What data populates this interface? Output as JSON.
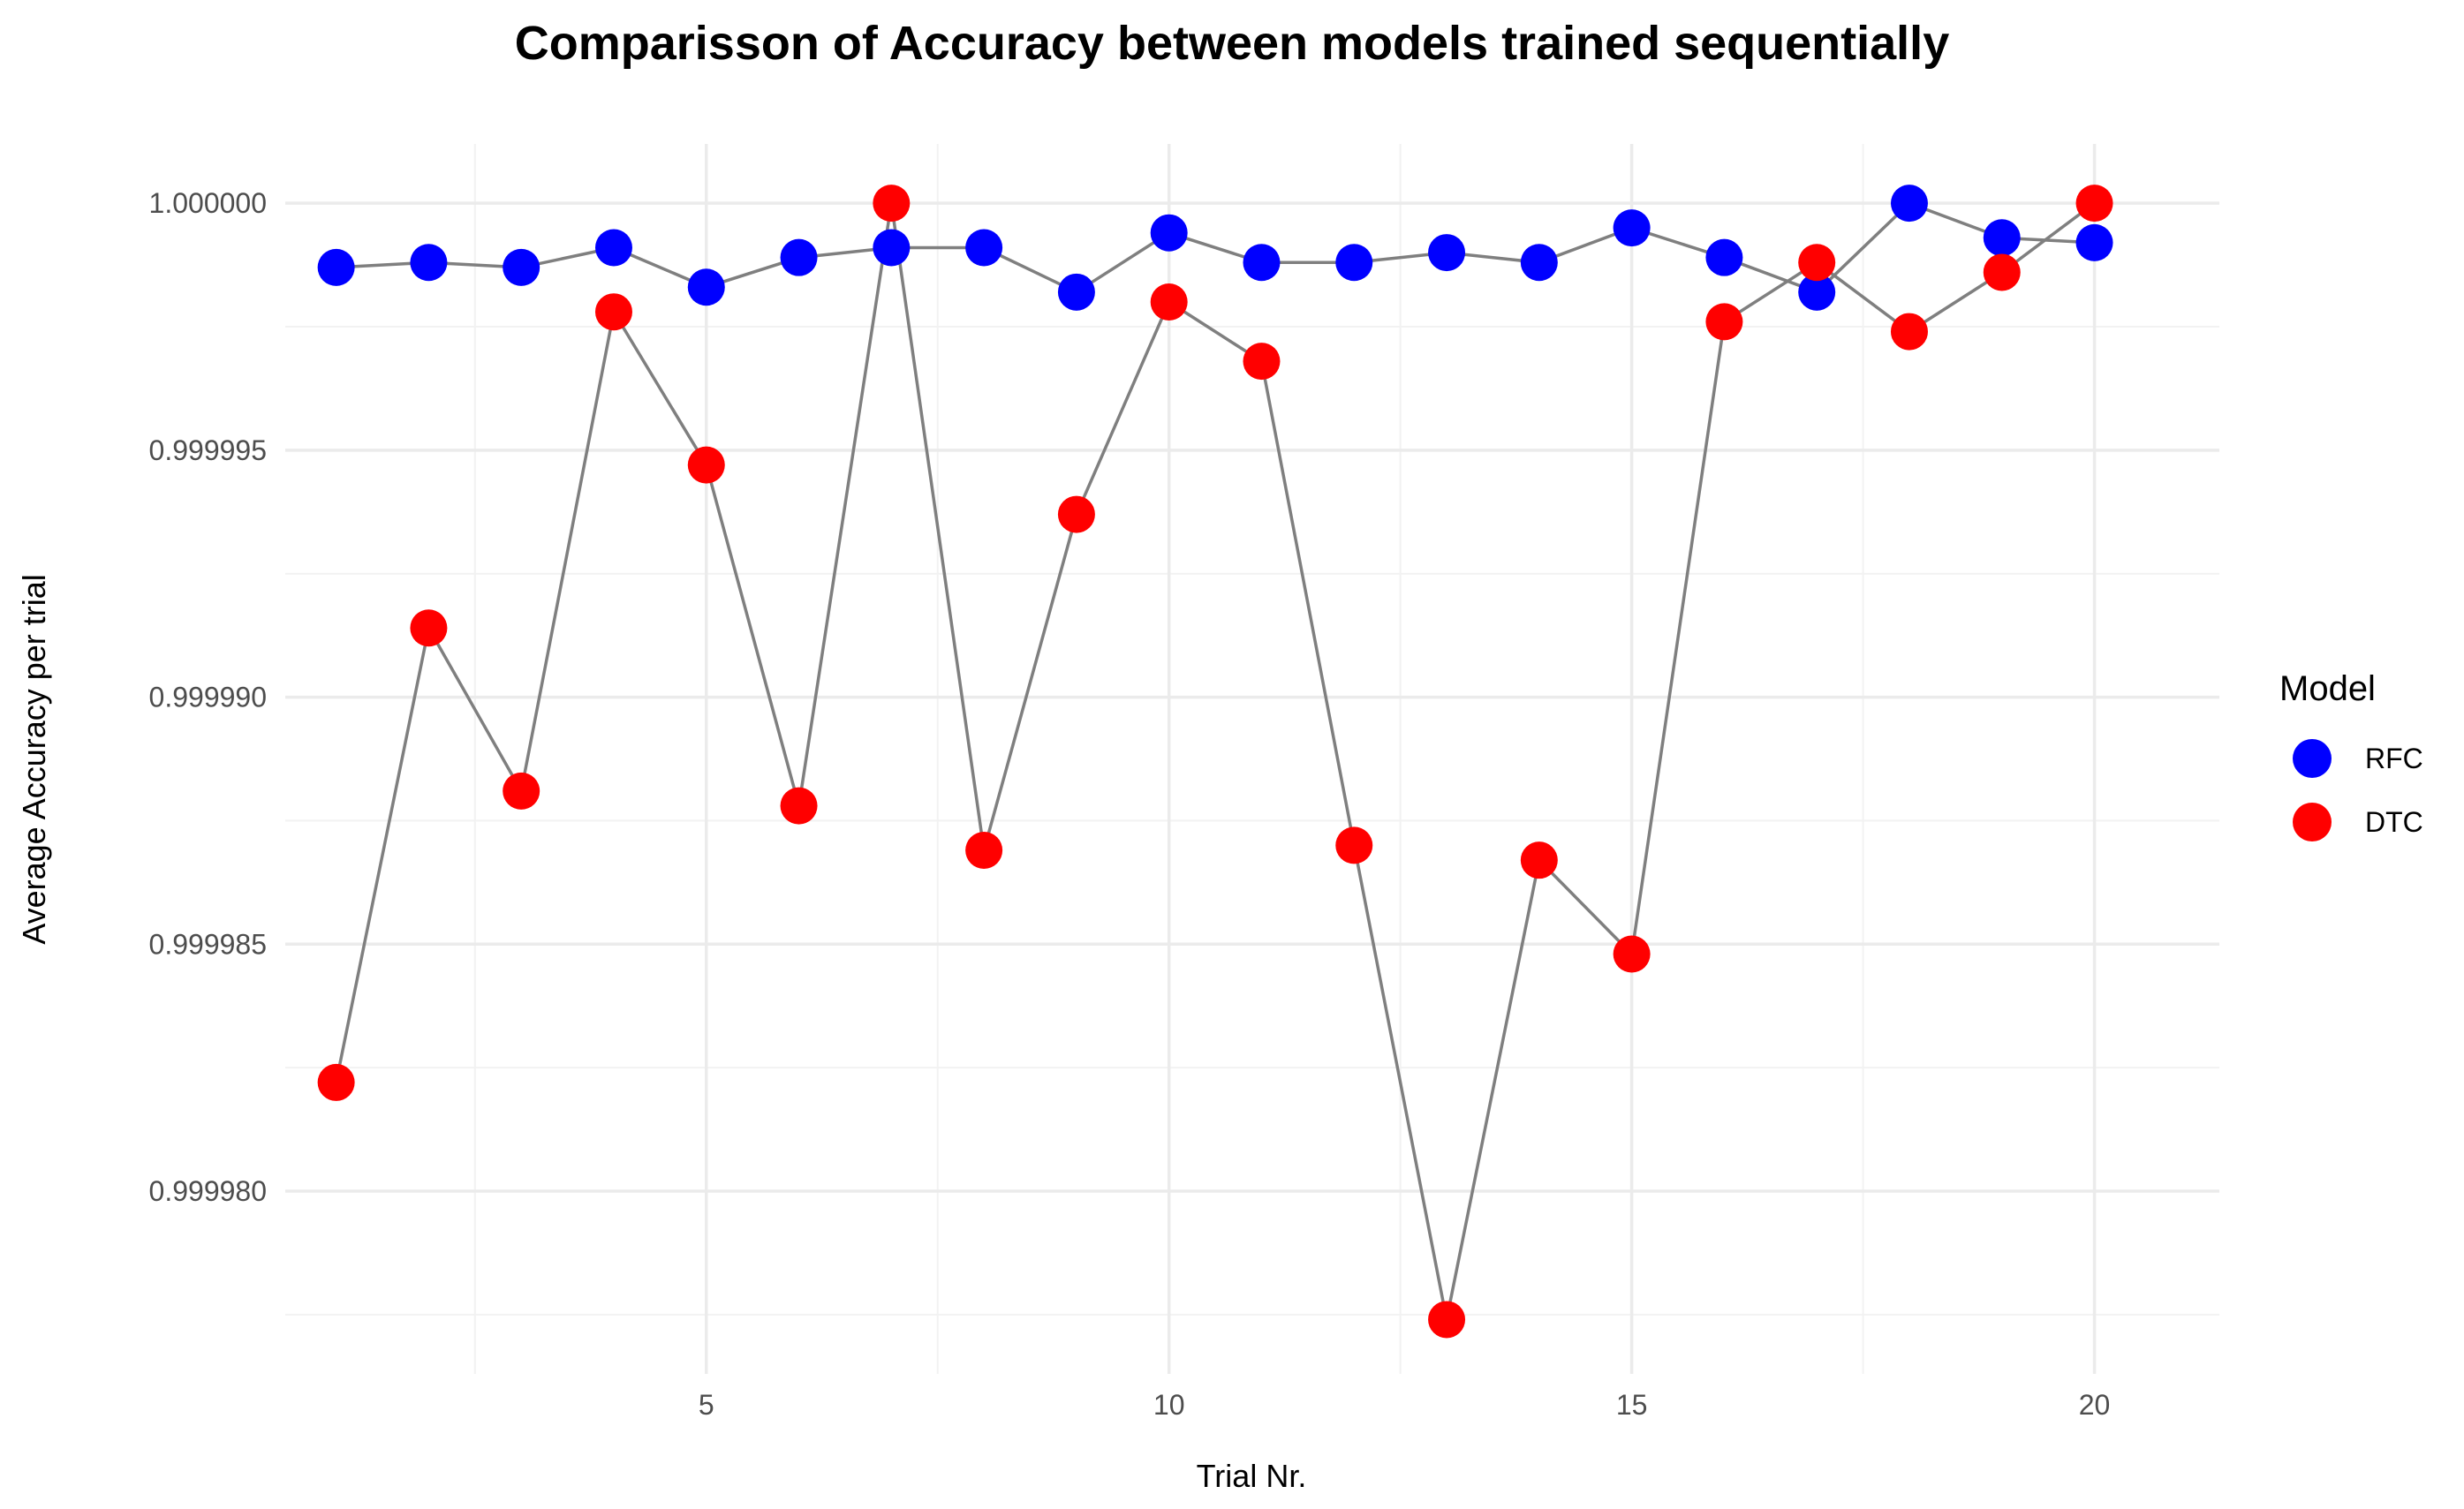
{
  "chart_data": {
    "type": "scatter",
    "title": "Comparisson of Accuracy between models trained sequentially",
    "xlabel": "Trial Nr.",
    "ylabel": "Average Accuracy per trial",
    "xlim": [
      0.45,
      21.35
    ],
    "ylim": [
      0.9999763,
      1.0000012
    ],
    "x_ticks": [
      5,
      10,
      15,
      20
    ],
    "x_tick_labels": [
      "5",
      "10",
      "15",
      "20"
    ],
    "x_minor_ticks": [
      2.5,
      7.5,
      12.5,
      17.5
    ],
    "y_ticks": [
      0.99998,
      0.999985,
      0.99999,
      0.999995,
      1.0
    ],
    "y_tick_labels": [
      "0.999980",
      "0.999985",
      "0.999990",
      "0.999995",
      "1.000000"
    ],
    "y_minor_ticks": [
      0.9999775,
      0.9999825,
      0.9999875,
      0.9999925,
      0.9999975
    ],
    "grid": true,
    "legend": {
      "title": "Model",
      "position": "right"
    },
    "connector_color": "#7f7f7f",
    "x": [
      1,
      2,
      3,
      4,
      5,
      6,
      7,
      8,
      9,
      10,
      11,
      12,
      13,
      14,
      15,
      16,
      17,
      18,
      19,
      20
    ],
    "series": [
      {
        "name": "RFC",
        "color": "#0000ff",
        "values": [
          0.9999987,
          0.9999988,
          0.9999987,
          0.9999991,
          0.9999983,
          0.9999989,
          0.9999991,
          0.9999991,
          0.9999982,
          0.9999994,
          0.9999988,
          0.9999988,
          0.999999,
          0.9999988,
          0.9999995,
          0.9999989,
          0.9999982,
          1.0,
          0.9999993,
          0.9999992
        ]
      },
      {
        "name": "DTC",
        "color": "#ff0000",
        "values": [
          0.9999822,
          0.9999914,
          0.9999881,
          0.9999978,
          0.9999947,
          0.9999878,
          1.0,
          0.9999869,
          0.9999937,
          0.999998,
          0.9999968,
          0.999987,
          0.9999774,
          0.9999867,
          0.9999848,
          0.9999976,
          0.9999988,
          0.9999974,
          0.9999986,
          1.0
        ]
      }
    ]
  }
}
